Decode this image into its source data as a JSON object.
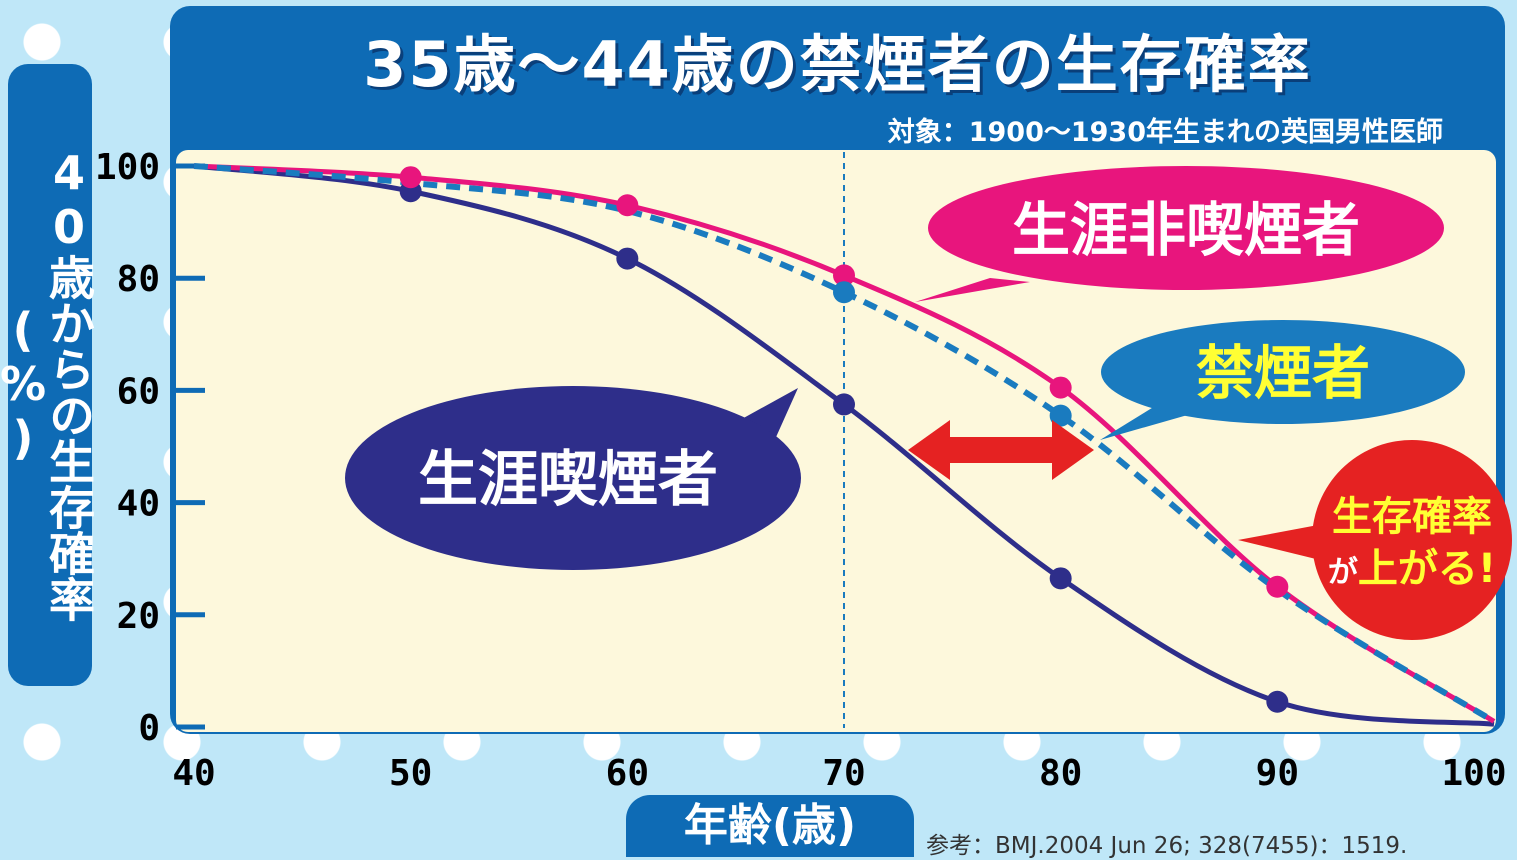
{
  "chart_data": {
    "type": "line",
    "title": "35歳〜44歳の禁煙者の生存確率",
    "subtitle": "対象：1900〜1930年生まれの英国男性医師",
    "xlabel": "年齢(歳)",
    "ylabel": "40歳からの生存確率(%)",
    "xlim": [
      40,
      100
    ],
    "ylim": [
      0,
      100
    ],
    "x_ticks": [
      40,
      50,
      60,
      70,
      80,
      90,
      100
    ],
    "y_ticks": [
      0,
      20,
      40,
      60,
      80,
      100
    ],
    "x_tick_labels": [
      "40",
      "50",
      "60",
      "70",
      "80",
      "90",
      "100"
    ],
    "y_tick_labels": [
      "0",
      "20",
      "40",
      "60",
      "80",
      "100"
    ],
    "reference_line_x": 70,
    "series": [
      {
        "name": "生涯非喫煙者",
        "color": "#e8157d",
        "style": "solid",
        "x": [
          40,
          50,
          60,
          70,
          80,
          90,
          100
        ],
        "values": [
          100,
          98,
          93,
          80.5,
          60.5,
          25,
          1
        ],
        "markers": [
          50,
          60,
          70,
          80,
          90
        ]
      },
      {
        "name": "禁煙者",
        "color": "#1a7bbf",
        "style": "dashed",
        "x": [
          40,
          50,
          60,
          70,
          80,
          90,
          100
        ],
        "values": [
          100,
          97,
          92,
          77.5,
          55.5,
          24.5,
          1
        ],
        "markers": [
          70,
          80
        ]
      },
      {
        "name": "生涯喫煙者",
        "color": "#2e2e8a",
        "style": "solid",
        "x": [
          40,
          50,
          60,
          70,
          80,
          90,
          100
        ],
        "values": [
          100,
          95.5,
          83.5,
          57.5,
          26.5,
          4.5,
          0.5
        ],
        "markers": [
          50,
          60,
          70,
          80,
          90
        ]
      }
    ],
    "annotations": [
      {
        "text": "生涯非喫煙者",
        "color": "#e8157d",
        "text_color": "#ffffff"
      },
      {
        "text": "禁煙者",
        "color": "#1a7bbf",
        "text_color": "#ffff33"
      },
      {
        "text": "生涯喫煙者",
        "color": "#2e2e8a",
        "text_color": "#ffffff"
      },
      {
        "text_line1": "生存確率",
        "text_line2a": "が",
        "text_line2b": "上がる!",
        "color": "#e52222",
        "text_color": "#ffff33",
        "text_color_small": "#ffffff"
      }
    ],
    "arrow_color": "#e52222",
    "plot_background": "#fdf8dc",
    "frame_color": "#0e6bb5"
  },
  "reference": "参考：BMJ.2004 Jun 26; 328(7455)：1519."
}
